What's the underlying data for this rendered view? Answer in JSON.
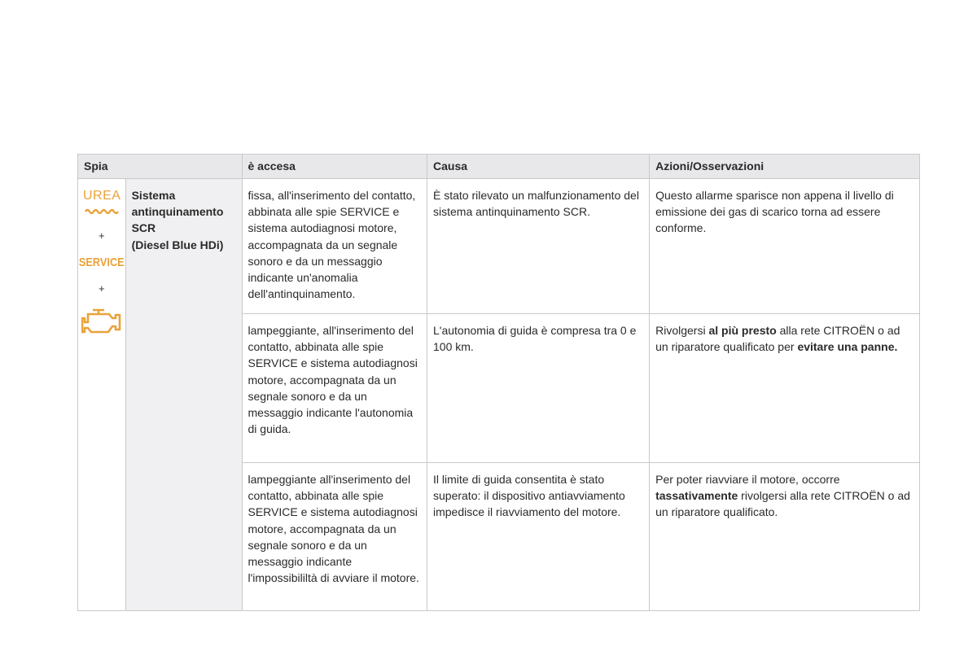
{
  "header": {
    "spia": "Spia",
    "accesa": "è accesa",
    "causa": "Causa",
    "azioni": "Azioni/Osservazioni"
  },
  "icons": {
    "urea": "UREA",
    "plus": "+",
    "service": "SERVICE",
    "accent": "#e9a23a"
  },
  "system": {
    "l1": "Sistema",
    "l2": "antinquinamento",
    "l3": "SCR",
    "l4": "(Diesel Blue HDi)"
  },
  "rows": [
    {
      "accesa": "fissa, all'inserimento del contatto, abbinata alle spie SERVICE e sistema autodiagnosi motore, accompagnata da un segnale sonoro e da un messaggio indicante un'anomalia dell'antinquinamento.",
      "causa": "È stato rilevato un malfunzionamento del sistema antinquinamento SCR.",
      "azioni": [
        {
          "t": "Questo allarme sparisce non appena il livello di emissione dei gas di scarico torna ad essere conforme."
        }
      ]
    },
    {
      "accesa": "lampeggiante, all'inserimento del contatto, abbinata alle spie SERVICE e sistema autodiagnosi motore, accompagnata da un segnale sonoro e da un messaggio indicante l'autonomia di guida.",
      "causa": "L'autonomia di guida è compresa tra 0 e 100 km.",
      "azioni": [
        {
          "t": "Rivolgersi "
        },
        {
          "t": "al più presto",
          "b": true
        },
        {
          "t": " alla rete CITROËN o ad un riparatore qualificato per "
        },
        {
          "t": "evitare una panne.",
          "b": true
        }
      ]
    },
    {
      "accesa": "lampeggiante all'inserimento del contatto, abbinata alle spie SERVICE e sistema autodiagnosi motore, accompagnata da un segnale sonoro e da un messaggio indicante l'impossibililtà di avviare il motore.",
      "causa": "Il limite di guida consentita è stato superato: il dispositivo antiavviamento impedisce il riavviamento del motore.",
      "azioni": [
        {
          "t": "Per poter riavviare il motore, occorre "
        },
        {
          "t": "tassativamente",
          "b": true
        },
        {
          "t": " rivolgersi alla rete CITROËN o ad un riparatore qualificato."
        }
      ]
    }
  ]
}
